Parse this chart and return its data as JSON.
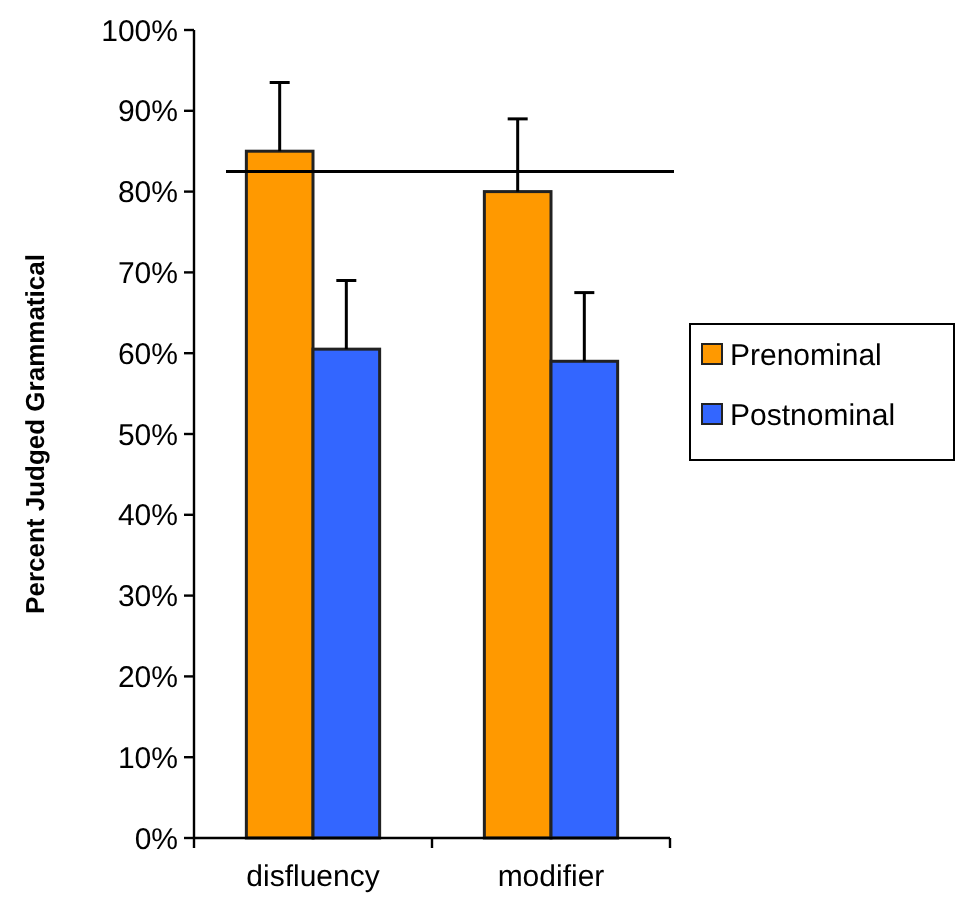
{
  "chart_data": {
    "type": "bar",
    "ylabel": "Percent Judged Grammatical",
    "categories": [
      "disfluency",
      "modifier"
    ],
    "series": [
      {
        "name": "Prenominal",
        "color": "#ff9900",
        "values": [
          85,
          80
        ],
        "errors": [
          [
            85,
            93.5
          ],
          [
            80,
            89
          ]
        ]
      },
      {
        "name": "Postnominal",
        "color": "#3366ff",
        "values": [
          60.5,
          59
        ],
        "errors": [
          [
            60.5,
            69
          ],
          [
            59,
            67.5
          ]
        ]
      }
    ],
    "ylim": [
      0,
      100
    ],
    "yticks": [
      {
        "value": 0,
        "label": "0%"
      },
      {
        "value": 10,
        "label": "10%"
      },
      {
        "value": 20,
        "label": "20%"
      },
      {
        "value": 30,
        "label": "30%"
      },
      {
        "value": 40,
        "label": "40%"
      },
      {
        "value": 50,
        "label": "50%"
      },
      {
        "value": 60,
        "label": "60%"
      },
      {
        "value": 70,
        "label": "70%"
      },
      {
        "value": 80,
        "label": "80%"
      },
      {
        "value": 90,
        "label": "90%"
      },
      {
        "value": 100,
        "label": "100%"
      }
    ],
    "ref_lines": [
      {
        "axis": "y",
        "value": 82.5,
        "label": null
      }
    ],
    "legend": "right",
    "grid": false
  }
}
